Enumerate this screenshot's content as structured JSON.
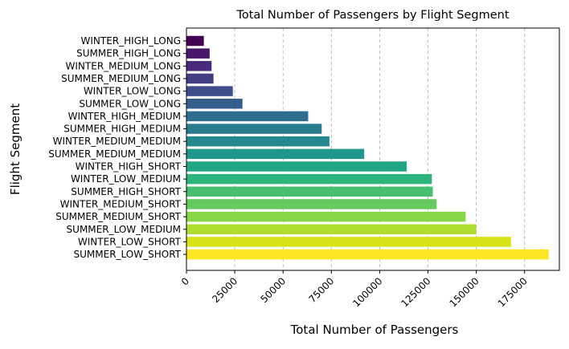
{
  "chart_data": {
    "type": "bar",
    "orientation": "horizontal",
    "title": "Total Number of Passengers by Flight Segment",
    "xlabel": "Total Number of Passengers",
    "ylabel": "Flight Segment",
    "xlim": [
      0,
      193000
    ],
    "xticks": [
      0,
      25000,
      50000,
      75000,
      100000,
      125000,
      150000,
      175000
    ],
    "xtick_labels": [
      "0",
      "25000",
      "50000",
      "75000",
      "100000",
      "125000",
      "150000",
      "175000"
    ],
    "grid": "x-dashed",
    "colormap": "viridis",
    "categories": [
      "WINTER_HIGH_LONG",
      "SUMMER_HIGH_LONG",
      "WINTER_MEDIUM_LONG",
      "SUMMER_MEDIUM_LONG",
      "WINTER_LOW_LONG",
      "SUMMER_LOW_LONG",
      "WINTER_HIGH_MEDIUM",
      "SUMMER_HIGH_MEDIUM",
      "WINTER_MEDIUM_MEDIUM",
      "SUMMER_MEDIUM_MEDIUM",
      "WINTER_HIGH_SHORT",
      "WINTER_LOW_MEDIUM",
      "SUMMER_HIGH_SHORT",
      "WINTER_MEDIUM_SHORT",
      "SUMMER_MEDIUM_SHORT",
      "SUMMER_LOW_MEDIUM",
      "WINTER_LOW_SHORT",
      "SUMMER_LOW_SHORT"
    ],
    "values": [
      9000,
      12000,
      13000,
      14000,
      24000,
      29000,
      63000,
      70000,
      74000,
      92000,
      114000,
      127000,
      127500,
      129500,
      144500,
      150000,
      168000,
      187500
    ],
    "colors": [
      "#440154",
      "#481769",
      "#472a7a",
      "#433d84",
      "#3d4e8a",
      "#355e8d",
      "#2e6d8e",
      "#297b8e",
      "#23898e",
      "#1f978b",
      "#21a585",
      "#2eb37c",
      "#46c06f",
      "#65cb5e",
      "#89d548",
      "#b0dd2f",
      "#d8e219",
      "#fde725"
    ]
  }
}
